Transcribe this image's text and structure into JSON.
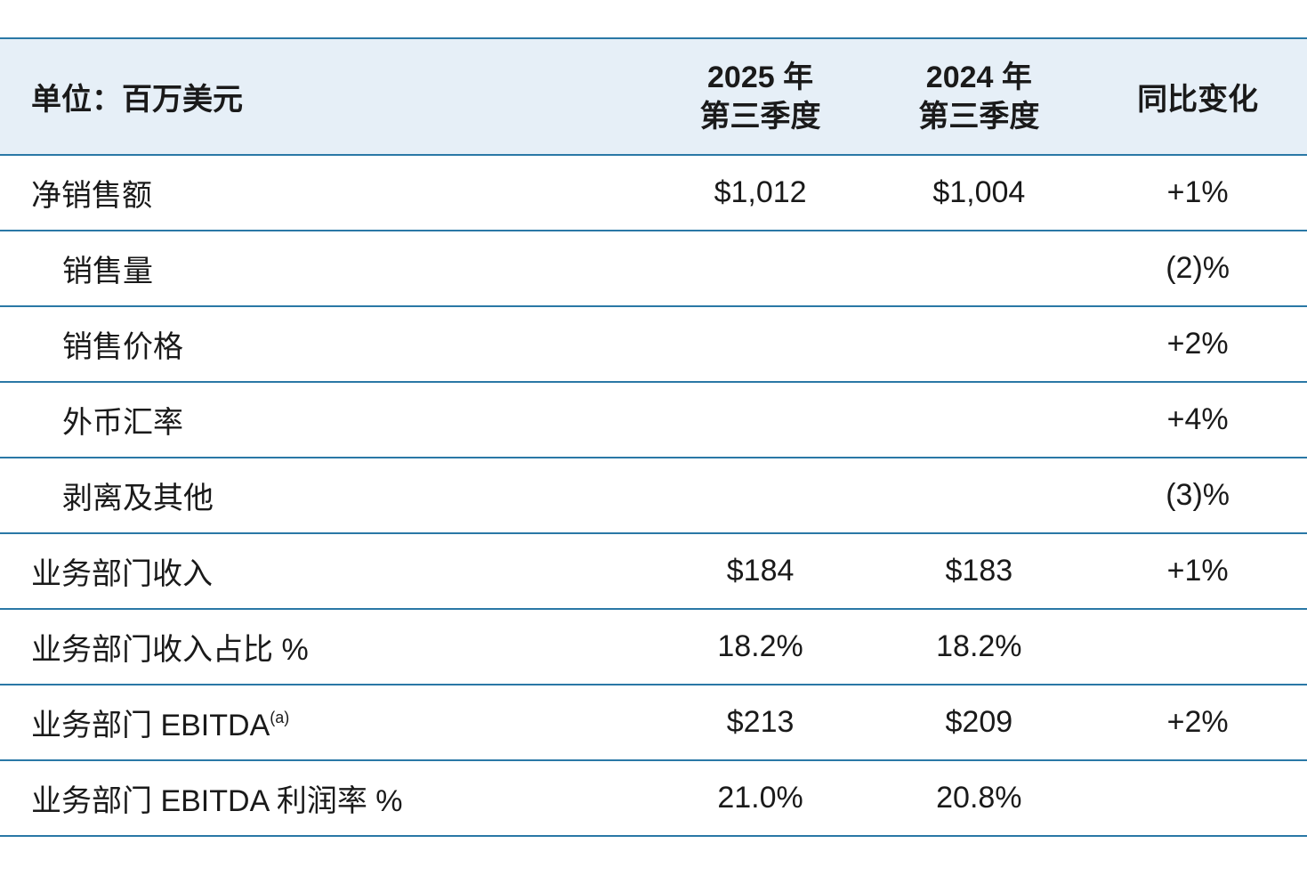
{
  "header": {
    "unit": "单位：百万美元",
    "col1": [
      "2025 年",
      "第三季度"
    ],
    "col2": [
      "2024 年",
      "第三季度"
    ],
    "col3": "同比变化"
  },
  "rows": [
    {
      "label": "净销售额",
      "indent": false,
      "v1": "$1,012",
      "v2": "$1,004",
      "v3": "+1%"
    },
    {
      "label": "销售量",
      "indent": true,
      "v1": "",
      "v2": "",
      "v3": "(2)%"
    },
    {
      "label": "销售价格",
      "indent": true,
      "v1": "",
      "v2": "",
      "v3": "+2%"
    },
    {
      "label": "外币汇率",
      "indent": true,
      "v1": "",
      "v2": "",
      "v3": "+4%"
    },
    {
      "label": "剥离及其他",
      "indent": true,
      "v1": "",
      "v2": "",
      "v3": "(3)%"
    },
    {
      "label": "业务部门收入",
      "indent": false,
      "v1": "$184",
      "v2": "$183",
      "v3": "+1%"
    },
    {
      "label": "业务部门收入占比 %",
      "indent": false,
      "v1": "18.2%",
      "v2": "18.2%",
      "v3": ""
    },
    {
      "label": "业务部门 EBITDA",
      "sup": "(a)",
      "indent": false,
      "v1": "$213",
      "v2": "$209",
      "v3": "+2%"
    },
    {
      "label": "业务部门 EBITDA 利润率 %",
      "indent": false,
      "v1": "21.0%",
      "v2": "20.8%",
      "v3": ""
    }
  ],
  "colors": {
    "header_bg": "#e6eff7",
    "rule": "#2a78a6"
  }
}
